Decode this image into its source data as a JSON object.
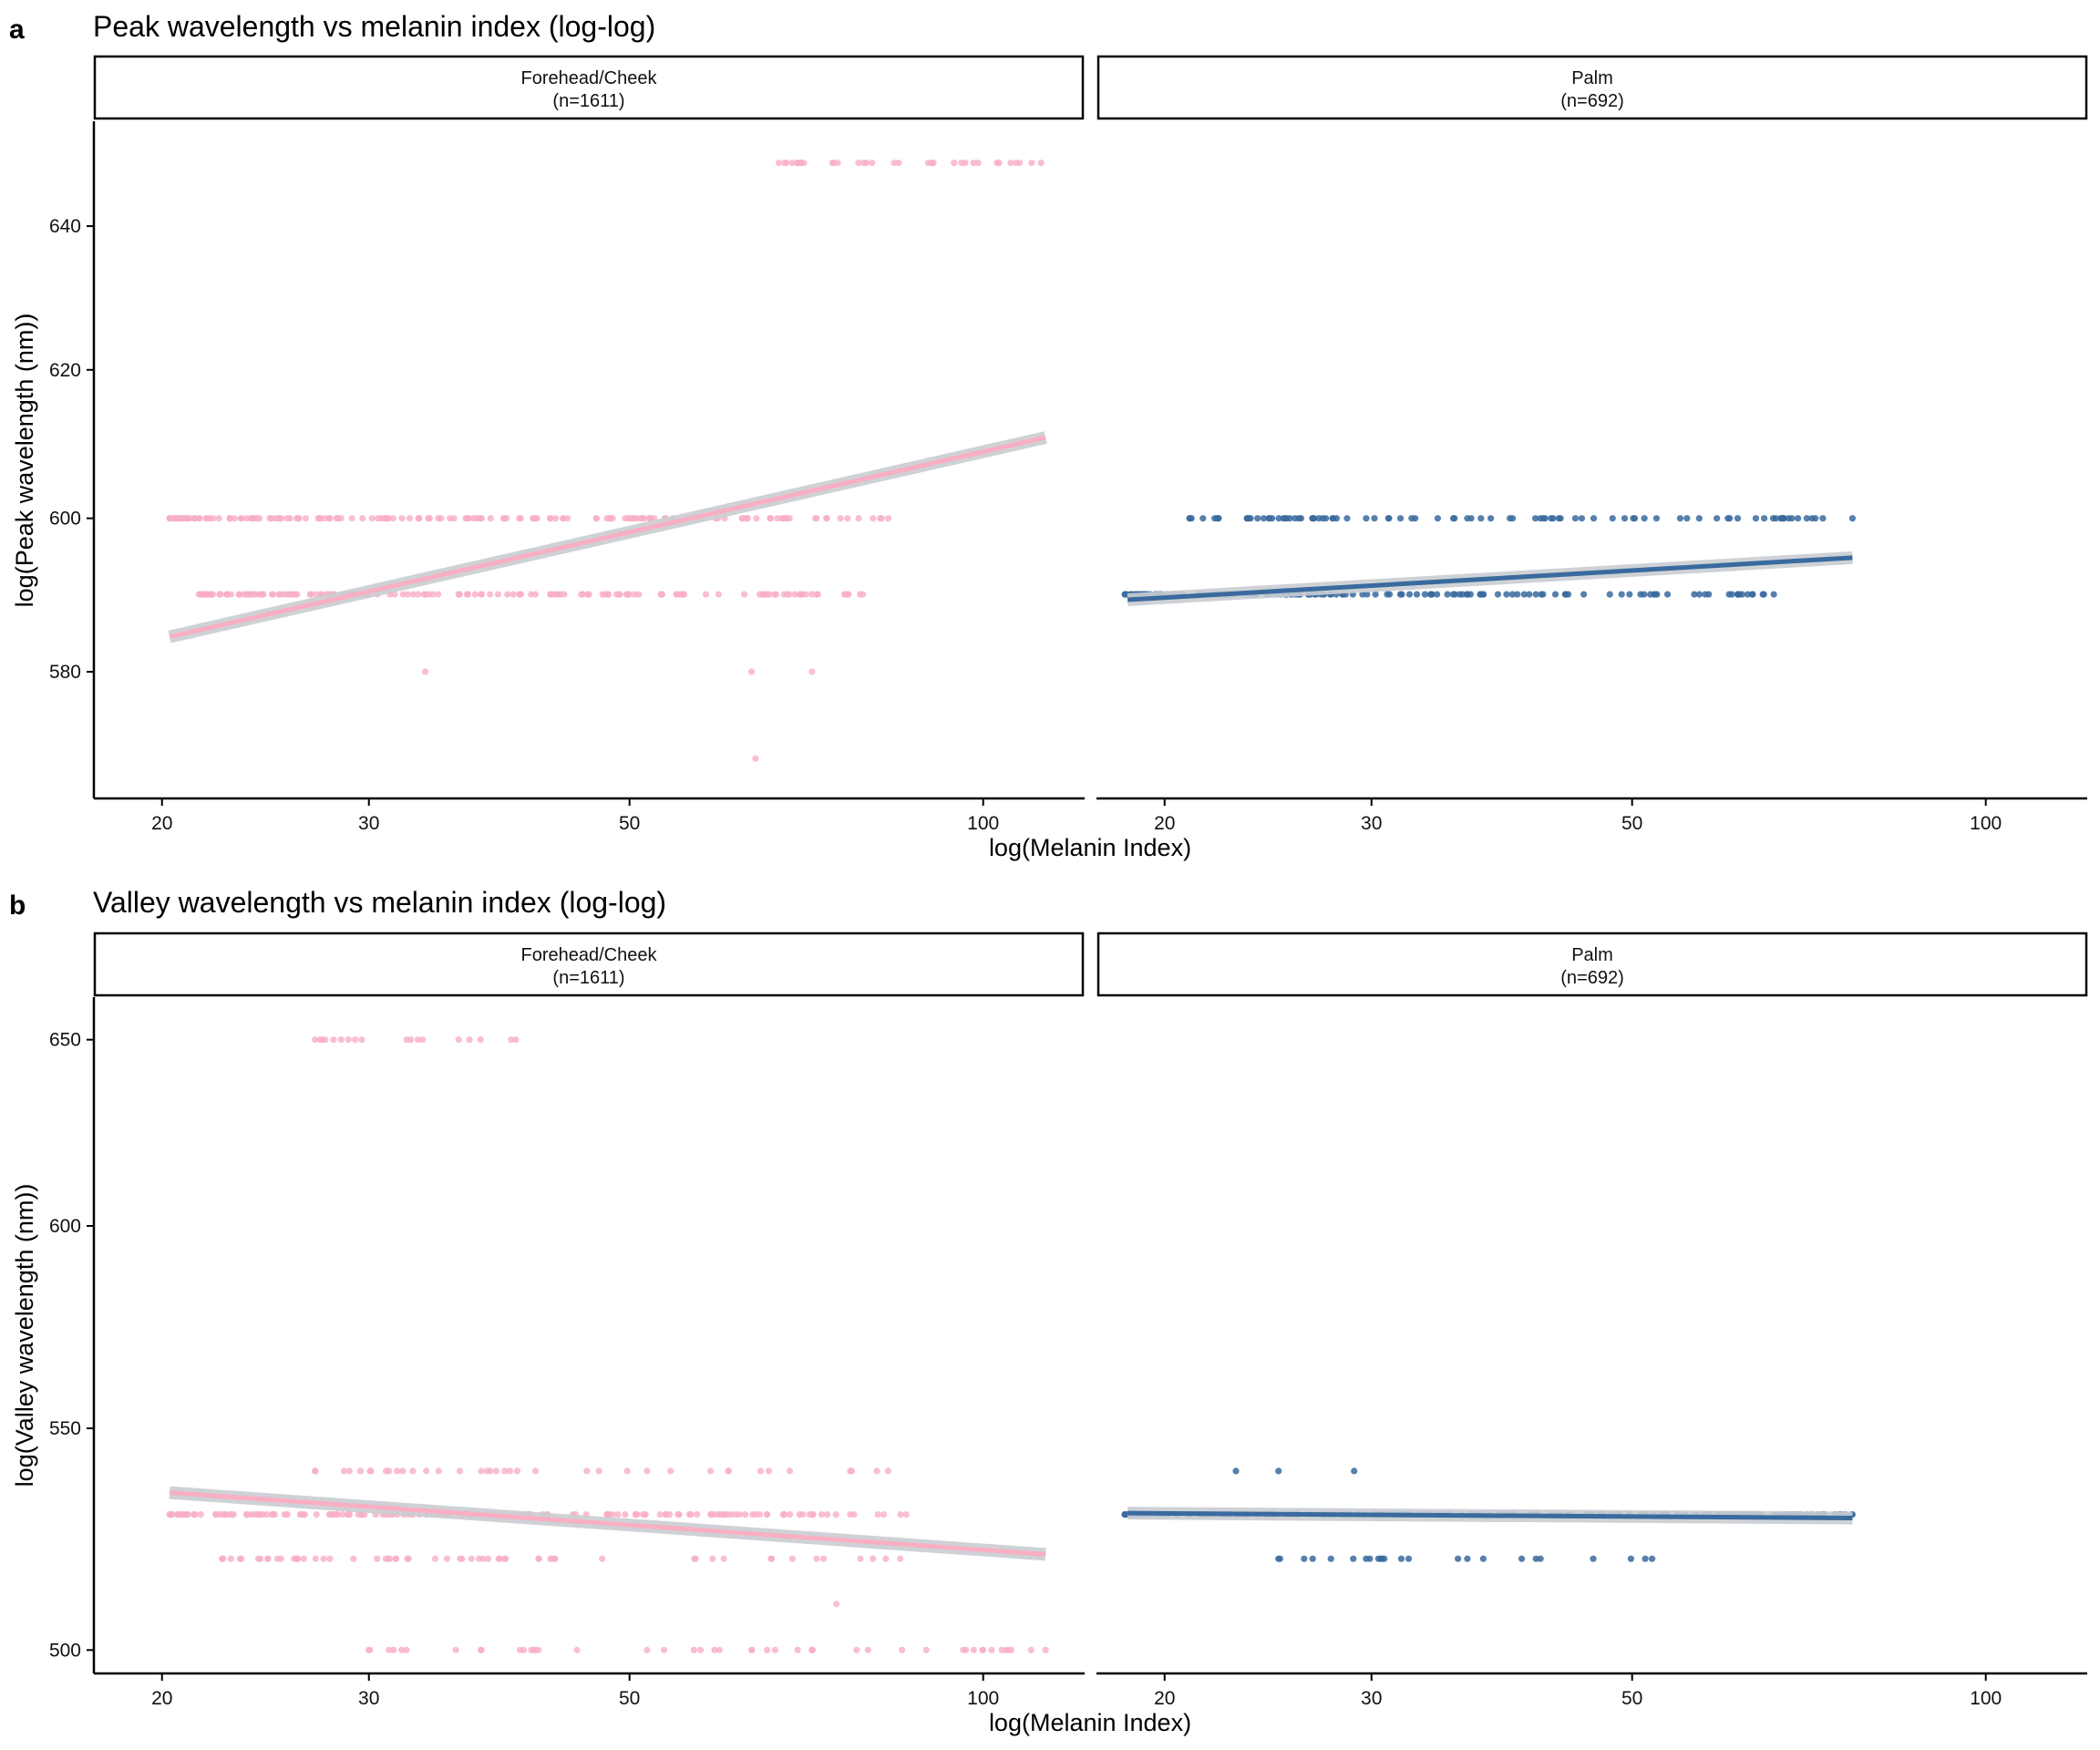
{
  "chart_data": [
    {
      "type": "scatter",
      "panel_label": "a",
      "title": "Peak wavelength vs melanin index (log-log)",
      "xlabel": "log(Melanin Index)",
      "ylabel": "log(Peak wavelength (nm))",
      "x_scale": "log",
      "y_scale": "log",
      "xlim": [
        17.5,
        122
      ],
      "ylim": [
        564,
        655
      ],
      "x_ticks": [
        20,
        30,
        50,
        100
      ],
      "y_ticks": [
        580,
        600,
        620,
        640
      ],
      "facets": [
        {
          "strip": "Forehead/Cheek",
          "n_label": "(n=1611)",
          "color": "#F8AFC4",
          "fit": {
            "x": [
              20.3,
              113
            ],
            "y": [
              584.5,
              610.8
            ]
          },
          "ci_band": "#C9CDD2",
          "points": {
            "649": {
              "range": [
                67,
                112
              ],
              "n": 32
            },
            "600": {
              "range": [
                20.3,
                83
              ],
              "n": 170
            },
            "590": {
              "range": [
                21.5,
                79
              ],
              "n": 150
            },
            "580": {
              "x": [
                33.5,
                63.5,
                71.5
              ]
            },
            "569": {
              "x": [
                64
              ]
            }
          }
        },
        {
          "strip": "Palm",
          "n_label": "(n=692)",
          "color": "#3A6A9E",
          "fit": {
            "x": [
              18.6,
              77
            ],
            "y": [
              589.3,
              594.8
            ]
          },
          "ci_band": "#C9CDD2",
          "points": {
            "600": {
              "range": [
                21,
                77
              ],
              "n": 90
            },
            "590": {
              "range": [
                18.5,
                66
              ],
              "n": 140
            }
          }
        }
      ]
    },
    {
      "type": "scatter",
      "panel_label": "b",
      "title": "Valley wavelength vs melanin index (log-log)",
      "xlabel": "log(Melanin Index)",
      "ylabel": "log(Valley wavelength (nm))",
      "x_scale": "log",
      "y_scale": "log",
      "xlim": [
        17.5,
        122
      ],
      "ylim": [
        495,
        662
      ],
      "x_ticks": [
        20,
        30,
        50,
        100
      ],
      "y_ticks": [
        500,
        550,
        600,
        650
      ],
      "facets": [
        {
          "strip": "Forehead/Cheek",
          "n_label": "(n=1611)",
          "color": "#F8AFC4",
          "fit": {
            "x": [
              20.3,
              113
            ],
            "y": [
              535,
              521
            ]
          },
          "ci_band": "#C9CDD2",
          "points": {
            "650": {
              "range": [
                27,
                40
              ],
              "n": 16
            },
            "540": {
              "range": [
                27,
                83
              ],
              "n": 36
            },
            "530": {
              "range": [
                20.3,
                86
              ],
              "n": 160
            },
            "520": {
              "range": [
                22.5,
                85
              ],
              "n": 60
            },
            "510": {
              "x": [
                75
              ]
            },
            "500": {
              "range": [
                30,
                113
              ],
              "n": 45
            }
          }
        },
        {
          "strip": "Palm",
          "n_label": "(n=692)",
          "color": "#3A6A9E",
          "fit": {
            "x": [
              18.6,
              77
            ],
            "y": [
              530.3,
              529.2
            ]
          },
          "ci_band": "#C9CDD2",
          "points": {
            "540": {
              "x": [
                23,
                25,
                29
              ]
            },
            "530": {
              "range": [
                18.5,
                77
              ],
              "n": 210
            },
            "520": {
              "range": [
                25,
                52
              ],
              "n": 22
            }
          }
        }
      ]
    }
  ]
}
